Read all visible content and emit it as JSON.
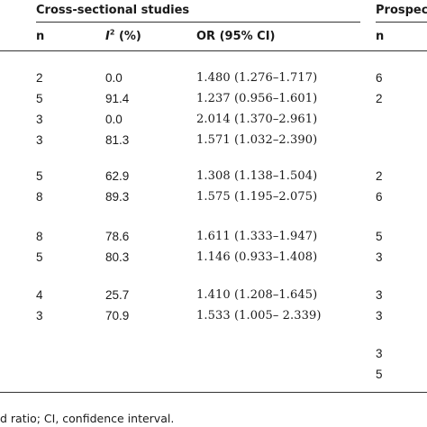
{
  "header": {
    "group_cross": "Cross-sectional studies",
    "group_prospective": "Prospec",
    "col_n": "n",
    "col_i2_letter": "I",
    "col_i2_sup": "2",
    "col_i2_unit": " (%)",
    "col_or": "OR (95% CI)",
    "col_n_prospective": "n"
  },
  "rows": [
    {
      "n": "2",
      "i2": "0.0",
      "or": "1.480 (1.276–1.717)",
      "pn": "6"
    },
    {
      "n": "5",
      "i2": "91.4",
      "or": "1.237 (0.956–1.601)",
      "pn": "2"
    },
    {
      "n": "3",
      "i2": "0.0",
      "or": "2.014 (1.370–2.961)",
      "pn": ""
    },
    {
      "n": "3",
      "i2": "81.3",
      "or": "1.571 (1.032–2.390)",
      "pn": ""
    },
    {
      "n": "5",
      "i2": "62.9",
      "or": "1.308 (1.138–1.504)",
      "pn": "2"
    },
    {
      "n": "8",
      "i2": "89.3",
      "or": "1.575 (1.195–2.075)",
      "pn": "6"
    },
    {
      "n": "8",
      "i2": "78.6",
      "or": "1.611 (1.333–1.947)",
      "pn": "5"
    },
    {
      "n": "5",
      "i2": "80.3",
      "or": "1.146 (0.933–1.408)",
      "pn": "3"
    },
    {
      "n": "4",
      "i2": "25.7",
      "or": "1.410 (1.208–1.645)",
      "pn": "3"
    },
    {
      "n": "3",
      "i2": "70.9",
      "or": "1.533 (1.005– 2.339)",
      "pn": "3"
    },
    {
      "n": "",
      "i2": "",
      "or": "",
      "pn": "3"
    },
    {
      "n": "",
      "i2": "",
      "or": "",
      "pn": "5"
    }
  ],
  "footnote": "d ratio; CI, confidence interval."
}
